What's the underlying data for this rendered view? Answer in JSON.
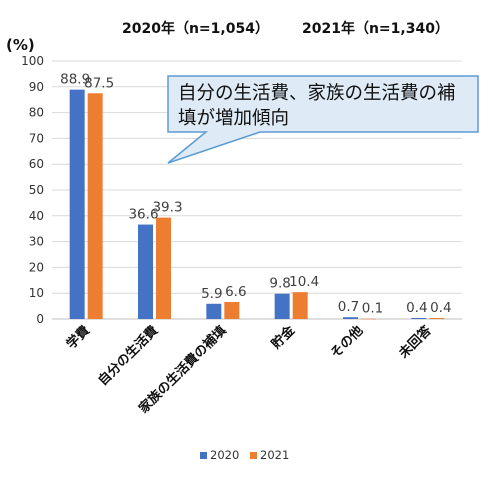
{
  "header": {
    "left": "2020年（n=1,054）",
    "right": "2021年（n=1,340）"
  },
  "chart_data": {
    "type": "bar",
    "ylabel": "(%)",
    "ylim": [
      0,
      100
    ],
    "yticks": [
      0,
      10,
      20,
      30,
      40,
      50,
      60,
      70,
      80,
      90,
      100
    ],
    "grid": true,
    "legend": "bottom",
    "categories": [
      "学費",
      "自分の生活費",
      "家族の生活費の補填",
      "貯金",
      "その他",
      "未回答"
    ],
    "series": [
      {
        "name": "2020",
        "color": "#4472C4",
        "values": [
          88.9,
          36.6,
          5.9,
          9.8,
          0.7,
          0.4
        ],
        "labels": [
          "88.9",
          "36.6",
          "5.9",
          "9.8",
          "0.7",
          "0.4"
        ]
      },
      {
        "name": "2021",
        "color": "#ED7D31",
        "values": [
          87.5,
          39.3,
          6.6,
          10.4,
          0.1,
          0.4
        ],
        "labels": [
          "87.5",
          "39.3",
          "6.6",
          "10.4",
          "0.1",
          "0.4"
        ]
      }
    ],
    "annotation": "自分の生活費、家族の生活費の補填が増加傾向"
  }
}
